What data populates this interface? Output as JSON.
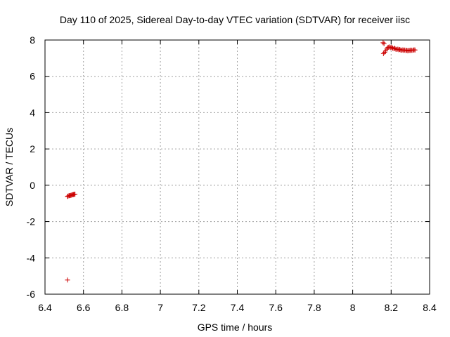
{
  "chart_data": {
    "type": "scatter",
    "title": "Day 110 of 2025, Sidereal Day-to-day VTEC variation (SDTVAR) for receiver iisc",
    "xlabel": "GPS time / hours",
    "ylabel": "SDTVAR / TECUs",
    "xlim": [
      6.4,
      8.4
    ],
    "ylim": [
      -6,
      8
    ],
    "grid": true,
    "xticks": [
      6.4,
      6.6,
      6.8,
      7.0,
      7.2,
      7.4,
      7.6,
      7.8,
      8.0,
      8.2,
      8.4
    ],
    "xtick_labels": [
      "6.4",
      "6.6",
      "6.8",
      "7",
      "7.2",
      "7.4",
      "7.6",
      "7.8",
      "8",
      "8.2",
      "8.4"
    ],
    "yticks": [
      -6,
      -4,
      -2,
      0,
      2,
      4,
      6,
      8
    ],
    "ytick_labels": [
      "-6",
      "-4",
      "-2",
      "0",
      "2",
      "4",
      "6",
      "8"
    ],
    "marker": "+",
    "color": "#cc0000",
    "series": [
      {
        "name": "SDTVAR",
        "x": [
          6.517,
          6.519,
          6.524,
          6.528,
          6.532,
          6.536,
          6.54,
          6.544,
          6.548,
          6.552,
          6.556,
          6.517,
          8.158,
          8.163,
          8.16,
          8.166,
          8.171,
          8.177,
          8.182,
          8.187,
          8.192,
          8.198,
          8.203,
          8.208,
          8.214,
          8.219,
          8.224,
          8.23,
          8.235,
          8.24,
          8.245,
          8.25,
          8.256,
          8.261,
          8.266,
          8.271,
          8.277,
          8.282,
          8.287,
          8.293,
          8.298,
          8.303,
          8.308,
          8.314,
          8.319,
          8.324
        ],
        "y": [
          -0.62,
          -0.6,
          -0.58,
          -0.57,
          -0.56,
          -0.55,
          -0.53,
          -0.52,
          -0.51,
          -0.5,
          -0.49,
          -5.22,
          7.85,
          7.8,
          7.25,
          7.32,
          7.4,
          7.5,
          7.58,
          7.6,
          7.62,
          7.58,
          7.6,
          7.55,
          7.52,
          7.55,
          7.5,
          7.48,
          7.5,
          7.46,
          7.48,
          7.45,
          7.44,
          7.46,
          7.43,
          7.45,
          7.42,
          7.44,
          7.4,
          7.44,
          7.42,
          7.45,
          7.43,
          7.44,
          7.46,
          7.45
        ]
      }
    ]
  }
}
